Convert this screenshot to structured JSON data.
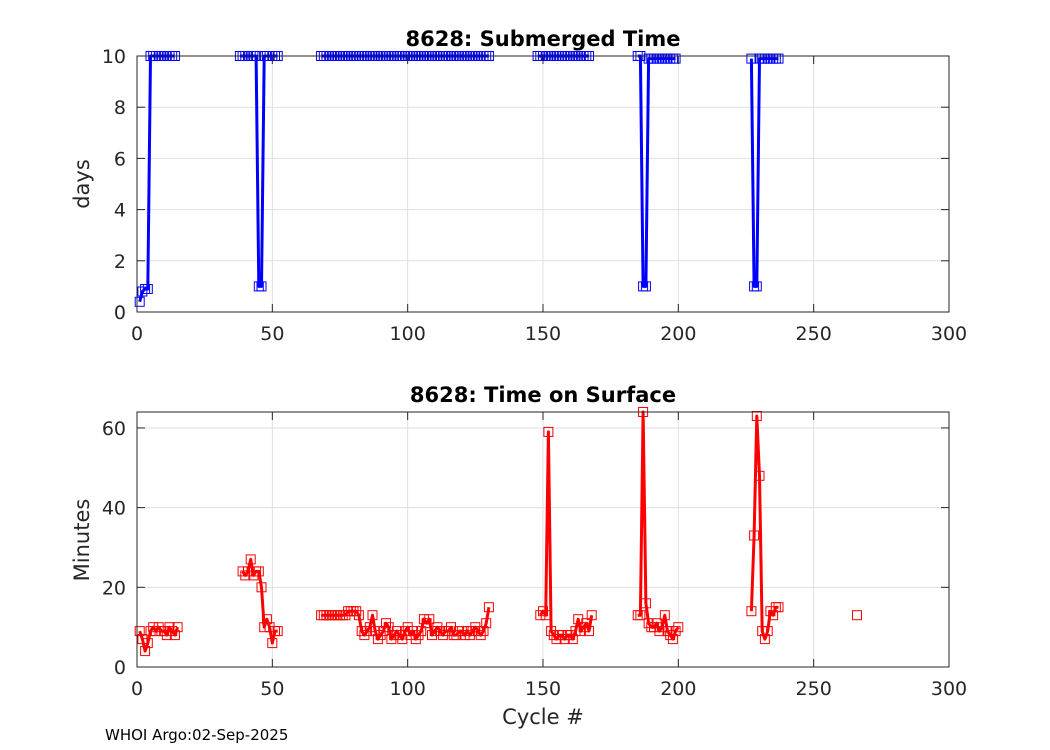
{
  "footer": "WHOI Argo:02-Sep-2025",
  "chart_data": [
    {
      "type": "line",
      "title": "8628: Submerged Time",
      "xlabel": "",
      "ylabel": "days",
      "xlim": [
        0,
        300
      ],
      "ylim": [
        0,
        10
      ],
      "xticks": [
        0,
        50,
        100,
        150,
        200,
        250,
        300
      ],
      "yticks": [
        0,
        2,
        4,
        6,
        8,
        10
      ],
      "grid": true,
      "color": "#0000ff",
      "marker": "square",
      "segments": [
        {
          "x": [
            1,
            2,
            3,
            4,
            5,
            6,
            7,
            8,
            9,
            10,
            11,
            12,
            13,
            14
          ],
          "y": [
            0.4,
            0.8,
            0.9,
            0.9,
            10,
            10,
            10,
            10,
            10,
            10,
            10,
            10,
            10,
            10
          ]
        },
        {
          "x": [
            38,
            39,
            40,
            41,
            42,
            43,
            44,
            45,
            46,
            47,
            48,
            49,
            50,
            51,
            52
          ],
          "y": [
            10,
            10,
            10,
            10,
            10,
            10,
            10,
            1,
            1,
            10,
            10,
            10,
            10,
            10,
            10
          ]
        },
        {
          "x": [
            68,
            69,
            70,
            71,
            72,
            73,
            74,
            75,
            76,
            77,
            78,
            79,
            80,
            81,
            82,
            83,
            84,
            85,
            86,
            87,
            88,
            89,
            90,
            91,
            92,
            93,
            94,
            95,
            96,
            97,
            98,
            99,
            100,
            101,
            102,
            103,
            104,
            105,
            106,
            107,
            108,
            109,
            110,
            111,
            112,
            113,
            114,
            115,
            116,
            117,
            118,
            119,
            120,
            121,
            122,
            123,
            124,
            125,
            126,
            127,
            128,
            129,
            130
          ],
          "y": [
            10,
            10,
            10,
            10,
            10,
            10,
            10,
            10,
            10,
            10,
            10,
            10,
            10,
            10,
            10,
            10,
            10,
            10,
            10,
            10,
            10,
            10,
            10,
            10,
            10,
            10,
            10,
            10,
            10,
            10,
            10,
            10,
            10,
            10,
            10,
            10,
            10,
            10,
            10,
            10,
            10,
            10,
            10,
            10,
            10,
            10,
            10,
            10,
            10,
            10,
            10,
            10,
            10,
            10,
            10,
            10,
            10,
            10,
            10,
            10,
            10,
            10,
            10
          ]
        },
        {
          "x": [
            148,
            149,
            150,
            151,
            152,
            153,
            154,
            155,
            156,
            157,
            158,
            159,
            160,
            161,
            162,
            163,
            164,
            165,
            166,
            167
          ],
          "y": [
            10,
            10,
            10,
            10,
            10,
            10,
            10,
            10,
            10,
            10,
            10,
            10,
            10,
            10,
            10,
            10,
            10,
            10,
            10,
            10
          ]
        },
        {
          "x": [
            185,
            186,
            187,
            188,
            189,
            190,
            191,
            192,
            193,
            194,
            195,
            196,
            197,
            198,
            199
          ],
          "y": [
            10,
            10,
            1,
            1,
            9.9,
            9.9,
            9.9,
            9.9,
            9.9,
            9.9,
            9.9,
            9.9,
            9.9,
            9.9,
            9.9
          ]
        },
        {
          "x": [
            227,
            228,
            229,
            230,
            231,
            232,
            233,
            234,
            235,
            236,
            237
          ],
          "y": [
            9.9,
            1,
            1,
            9.9,
            9.9,
            9.9,
            9.9,
            9.9,
            9.9,
            9.9,
            9.9
          ]
        }
      ]
    },
    {
      "type": "line",
      "title": "8628: Time on Surface",
      "xlabel": "Cycle #",
      "ylabel": "Minutes",
      "xlim": [
        0,
        300
      ],
      "ylim": [
        0,
        64
      ],
      "xticks": [
        0,
        50,
        100,
        150,
        200,
        250,
        300
      ],
      "yticks": [
        0,
        20,
        40,
        60
      ],
      "grid": true,
      "color": "#ff0000",
      "marker": "square",
      "segments": [
        {
          "x": [
            1,
            2,
            3,
            4,
            5,
            6,
            7,
            8,
            9,
            10,
            11,
            12,
            13,
            14,
            15
          ],
          "y": [
            9,
            7,
            4,
            6,
            9,
            10,
            9,
            10,
            9,
            9,
            8,
            10,
            9,
            8,
            10
          ]
        },
        {
          "x": [
            39,
            40,
            41,
            42,
            43,
            44,
            45,
            46,
            47,
            48,
            49,
            50,
            51,
            52
          ],
          "y": [
            24,
            23,
            24,
            27,
            23,
            24,
            24,
            20,
            10,
            12,
            10,
            6,
            9,
            9
          ]
        },
        {
          "x": [
            68,
            69,
            70,
            71,
            72,
            73,
            74,
            75,
            76,
            77,
            78,
            79,
            80,
            81,
            82,
            83,
            84,
            85,
            86,
            87,
            88,
            89,
            90,
            91,
            92,
            93,
            94,
            95,
            96,
            97,
            98,
            99,
            100,
            101,
            102,
            103,
            104,
            105,
            106,
            107,
            108,
            109,
            110,
            111,
            112,
            113,
            114,
            115,
            116,
            117,
            118,
            119,
            120,
            121,
            122,
            123,
            124,
            125,
            126,
            127,
            128,
            129,
            130
          ],
          "y": [
            13,
            13,
            13,
            13,
            13,
            13,
            13,
            13,
            13,
            13,
            14,
            14,
            14,
            14,
            13,
            9,
            8,
            9,
            10,
            13,
            9,
            7,
            8,
            9,
            11,
            10,
            7,
            8,
            9,
            8,
            7,
            9,
            10,
            8,
            9,
            7,
            8,
            9,
            12,
            11,
            12,
            8,
            9,
            10,
            9,
            8,
            9,
            9,
            10,
            8,
            8,
            9,
            9,
            8,
            9,
            8,
            9,
            10,
            9,
            8,
            9,
            11,
            15
          ]
        },
        {
          "x": [
            149,
            150,
            151,
            152,
            153,
            154,
            155,
            156,
            157,
            158,
            159,
            160,
            161,
            162,
            163,
            164,
            165,
            166,
            167,
            168
          ],
          "y": [
            13,
            14,
            13,
            59,
            9,
            8,
            7,
            8,
            8,
            7,
            8,
            8,
            7,
            9,
            12,
            9,
            10,
            11,
            9,
            13
          ]
        },
        {
          "x": [
            185,
            186,
            187,
            188,
            189,
            190,
            191,
            192,
            193,
            194,
            195,
            196,
            197,
            198,
            199,
            200
          ],
          "y": [
            13,
            13,
            64,
            16,
            11,
            10,
            10,
            11,
            9,
            10,
            13,
            9,
            8,
            7,
            9,
            10
          ]
        },
        {
          "x": [
            227,
            228,
            229,
            230,
            231,
            232,
            233,
            234,
            235,
            236,
            237
          ],
          "y": [
            14,
            33,
            63,
            48,
            9,
            7,
            9,
            14,
            13,
            15,
            15
          ]
        },
        {
          "x": [
            266
          ],
          "y": [
            13
          ]
        }
      ]
    }
  ]
}
